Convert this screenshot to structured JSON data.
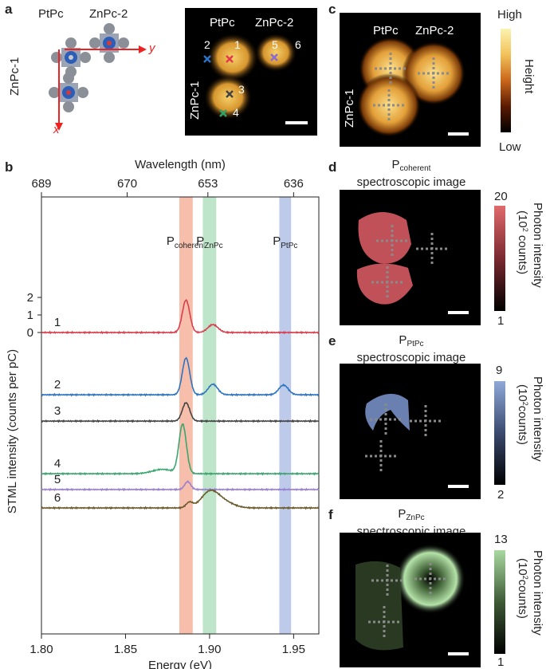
{
  "panels": {
    "a": {
      "letter": "a",
      "mol1": "PtPc",
      "mol2": "ZnPc-2",
      "mol3": "ZnPc-1",
      "axis_x": "x",
      "axis_y": "y",
      "stm_labels": {
        "ptpc": "PtPc",
        "znpc2": "ZnPc-2",
        "znpc1": "ZnPc-1"
      },
      "points": [
        {
          "id": "1",
          "color": "#e2394a"
        },
        {
          "id": "2",
          "color": "#2b73c6"
        },
        {
          "id": "3",
          "color": "#444444"
        },
        {
          "id": "4",
          "color": "#2ea36a"
        },
        {
          "id": "5",
          "color": "#8a6bd0"
        },
        {
          "id": "6",
          "color": "#ffffff"
        }
      ]
    },
    "c": {
      "letter": "c",
      "ptpc": "PtPc",
      "znpc2": "ZnPc-2",
      "znpc1": "ZnPc-1",
      "cbar_high": "High",
      "cbar_low": "Low",
      "cbar_title": "Height"
    },
    "d": {
      "letter": "d",
      "title_main": "P",
      "title_sub": "coherent",
      "title_line2": "spectroscopic image",
      "cbar_max": "20",
      "cbar_min": "1",
      "cbar_title1": "Photon intensity",
      "cbar_title2a": "(10",
      "cbar_title2sup": "2",
      "cbar_title2b": " counts)",
      "color": "#e06a6c"
    },
    "e": {
      "letter": "e",
      "title_main": "P",
      "title_sub": "PtPc",
      "title_line2": "spectroscopic image",
      "cbar_max": "9",
      "cbar_min": "2",
      "cbar_title1": "Photon intensity",
      "cbar_title2a": "(10",
      "cbar_title2sup": "2",
      "cbar_title2b": "counts)",
      "color": "#8fa9d8"
    },
    "f": {
      "letter": "f",
      "title_main": "P",
      "title_sub": "ZnPc",
      "title_line2": "spectroscopic image",
      "cbar_max": "13",
      "cbar_min": "1",
      "cbar_title1": "Photon intensity",
      "cbar_title2a": "(10",
      "cbar_title2sup": "2",
      "cbar_title2b": "counts)",
      "color": "#a9d9a0"
    },
    "b": {
      "letter": "b"
    }
  },
  "chart_data": {
    "type": "line",
    "xlabel": "Energy (eV)",
    "top_xlabel": "Wavelength (nm)",
    "ylabel": "STML intensity (counts per pC)",
    "xlim": [
      1.8,
      1.965
    ],
    "x_ticks": [
      1.8,
      1.85,
      1.9,
      1.95
    ],
    "x_tick_labels": [
      "1.80",
      "1.85",
      "1.90",
      "1.95"
    ],
    "top_ticks": [
      {
        "label": "689",
        "energy": 1.8
      },
      {
        "label": "670",
        "energy": 1.851
      },
      {
        "label": "653",
        "energy": 1.899
      },
      {
        "label": "636",
        "energy": 1.95
      }
    ],
    "y_tick_labels": [
      "2",
      "1",
      "0"
    ],
    "y_ticks": [
      2,
      1,
      0
    ],
    "bands": [
      {
        "main": "P",
        "sub": "coherent",
        "center": 1.886,
        "width": 0.008,
        "color": "#f4a98f"
      },
      {
        "main": "P",
        "sub": "ZnPc",
        "center": 1.9,
        "width": 0.008,
        "color": "#a8dbb8"
      },
      {
        "main": "P",
        "sub": "PtPc",
        "center": 1.945,
        "width": 0.007,
        "color": "#a8b8e2"
      }
    ],
    "series": [
      {
        "name": "1",
        "color": "#d8404f",
        "offset": 0,
        "baseline": 0,
        "peaks": [
          [
            1.886,
            1.85,
            0.0022
          ],
          [
            1.902,
            0.45,
            0.003
          ]
        ]
      },
      {
        "name": "2",
        "color": "#2c74c0",
        "offset": -3.55,
        "baseline": 0,
        "peaks": [
          [
            1.886,
            2.1,
            0.0022
          ],
          [
            1.902,
            0.6,
            0.0028
          ],
          [
            1.944,
            0.55,
            0.0028
          ]
        ]
      },
      {
        "name": "3",
        "color": "#444444",
        "offset": -5.05,
        "baseline": 0,
        "peaks": [
          [
            1.886,
            1.05,
            0.0022
          ]
        ]
      },
      {
        "name": "4",
        "color": "#3aa56e",
        "offset": -8.05,
        "baseline": 0,
        "peaks": [
          [
            1.884,
            2.8,
            0.0022
          ],
          [
            1.872,
            0.25,
            0.006
          ]
        ]
      },
      {
        "name": "5",
        "color": "#9b7fd1",
        "offset": -8.95,
        "baseline": 0,
        "peaks": [
          [
            1.887,
            0.45,
            0.0018
          ]
        ]
      },
      {
        "name": "6",
        "color": "#6b5a2b",
        "offset": -10.0,
        "baseline": 0,
        "peaks": [
          [
            1.888,
            0.3,
            0.002
          ],
          [
            1.9,
            0.85,
            0.005
          ],
          [
            1.908,
            0.35,
            0.006
          ]
        ]
      }
    ]
  }
}
